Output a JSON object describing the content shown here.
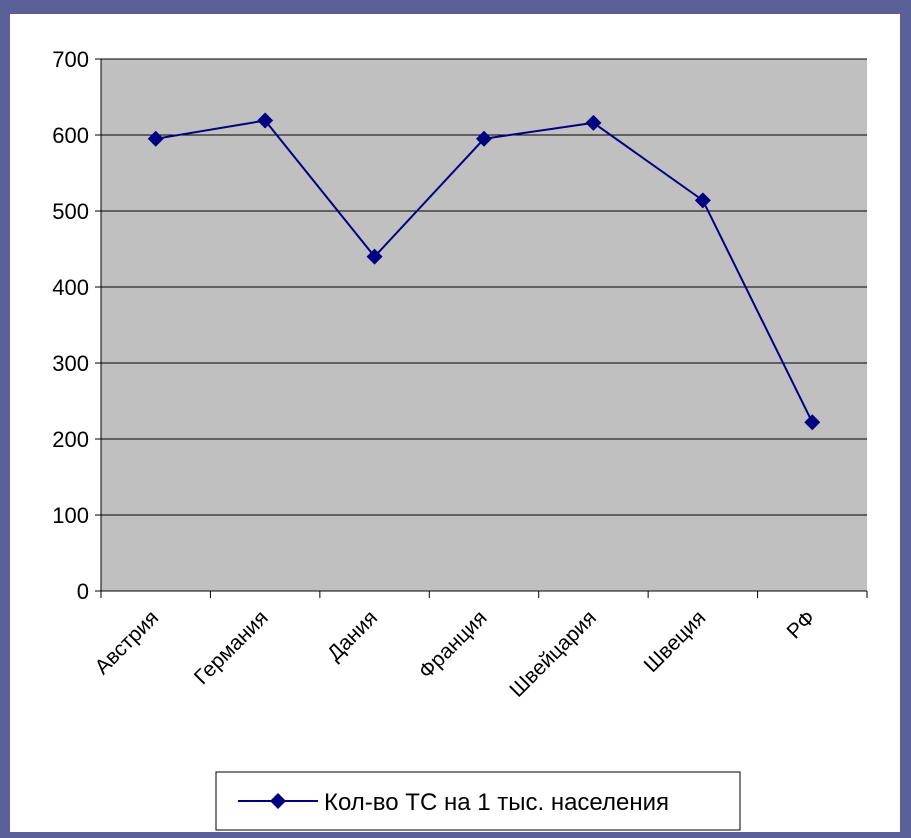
{
  "chart_data": {
    "type": "line",
    "categories": [
      "Австрия",
      "Германия",
      "Дания",
      "Франция",
      "Швейцария",
      "Швеция",
      "РФ"
    ],
    "series": [
      {
        "name": "Кол-во ТС на 1 тыс. населения",
        "values": [
          595,
          619,
          440,
          595,
          616,
          514,
          222
        ]
      }
    ],
    "y_ticks": [
      "0",
      "100",
      "200",
      "300",
      "400",
      "500",
      "600",
      "700"
    ],
    "ylim": [
      0,
      700
    ],
    "grid": true,
    "legend_position": "bottom",
    "colors": {
      "background": "#5a5f98",
      "chart_area": "#ffffff",
      "plot_area": "#c0c0c0",
      "gridline": "#000000",
      "series": "#000080"
    }
  }
}
